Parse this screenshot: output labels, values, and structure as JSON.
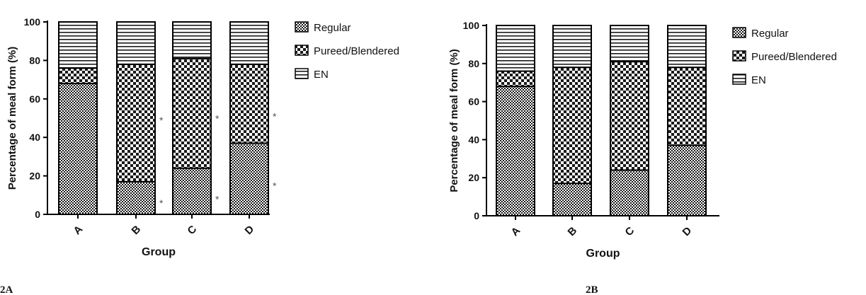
{
  "chart_data": [
    {
      "type": "bar",
      "stacked": true,
      "panel_label": "2A",
      "categories": [
        "A",
        "B",
        "C",
        "D"
      ],
      "xlabel": "Group",
      "ylabel": "Percentage of meal form (%)",
      "ylim": [
        0,
        100
      ],
      "yticks": [
        "0",
        "20",
        "40",
        "60",
        "80",
        "100"
      ],
      "series": [
        {
          "name": "Regular",
          "values": [
            68,
            17,
            24,
            37
          ]
        },
        {
          "name": "Pureed/Blendered",
          "values": [
            8,
            61,
            57,
            41
          ]
        },
        {
          "name": "EN",
          "values": [
            24,
            22,
            19,
            22
          ]
        }
      ],
      "annotations": [
        {
          "text": "*",
          "category": "B",
          "y": 50
        },
        {
          "text": "*",
          "category": "B",
          "y": 7
        },
        {
          "text": "*",
          "category": "C",
          "y": 51
        },
        {
          "text": "*",
          "category": "C",
          "y": 9
        },
        {
          "text": "*",
          "category": "D",
          "y": 52
        },
        {
          "text": "*",
          "category": "D",
          "y": 16
        }
      ],
      "legend_position": "right"
    },
    {
      "type": "bar",
      "stacked": true,
      "panel_label": "2B",
      "categories": [
        "A",
        "B",
        "C",
        "D"
      ],
      "xlabel": "Group",
      "ylabel": "Percentage of meal form (%)",
      "ylim": [
        0,
        100
      ],
      "yticks": [
        "0",
        "20",
        "40",
        "60",
        "80",
        "100"
      ],
      "series": [
        {
          "name": "Regular",
          "values": [
            68,
            17,
            24,
            37
          ]
        },
        {
          "name": "Pureed/Blendered",
          "values": [
            8,
            61,
            57,
            41
          ]
        },
        {
          "name": "EN",
          "values": [
            24,
            22,
            19,
            22
          ]
        }
      ],
      "annotations": [],
      "legend_position": "right"
    }
  ]
}
